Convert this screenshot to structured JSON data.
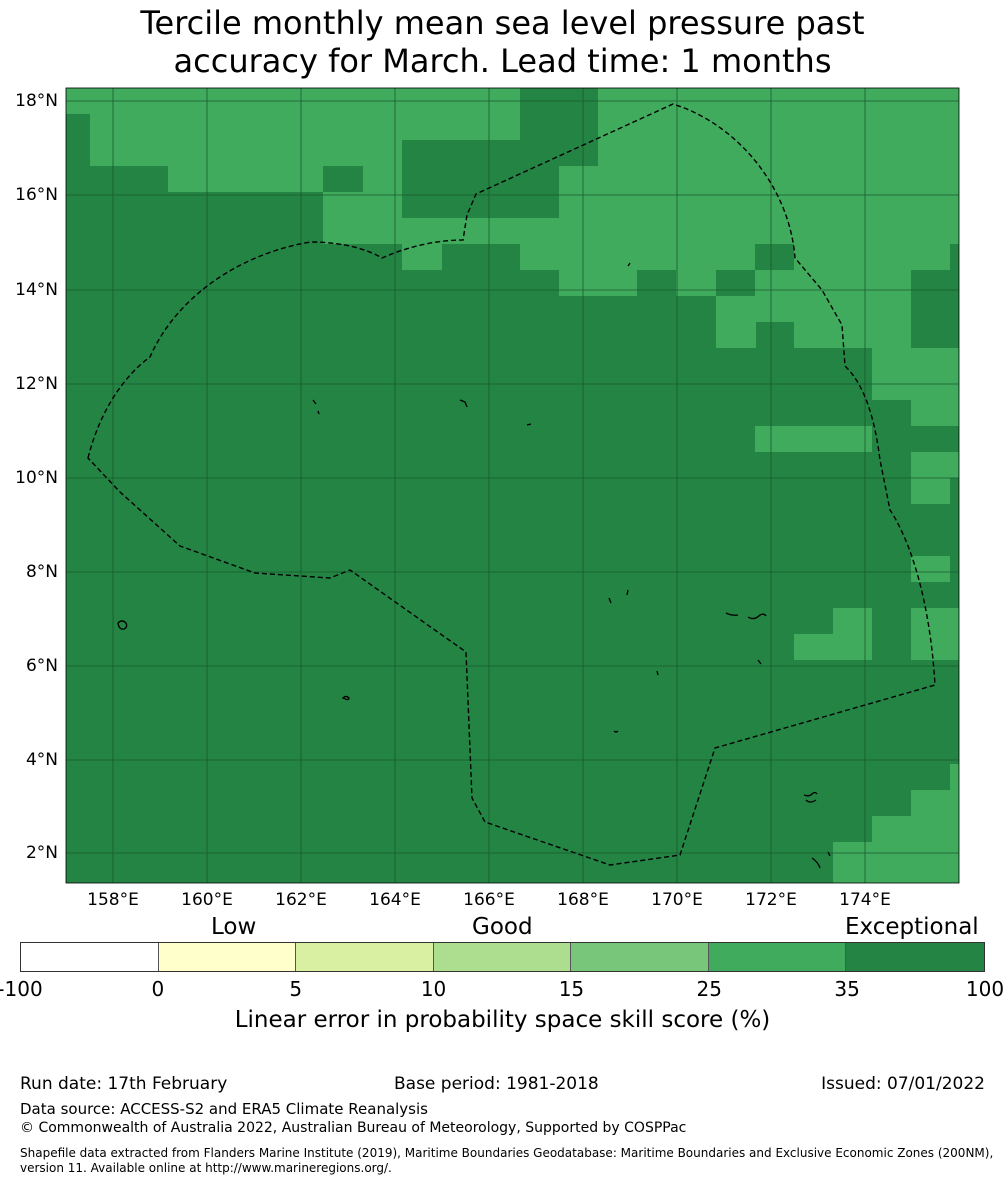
{
  "title_line1": "Tercile monthly mean sea level pressure past",
  "title_line2": "accuracy for March. Lead time: 1 months",
  "map": {
    "lat_labels": [
      "18°N",
      "16°N",
      "14°N",
      "12°N",
      "10°N",
      "8°N",
      "6°N",
      "4°N",
      "2°N"
    ],
    "lon_labels": [
      "158°E",
      "160°E",
      "162°E",
      "164°E",
      "166°E",
      "168°E",
      "170°E",
      "172°E",
      "174°E"
    ],
    "boundary": "dashed exclusive economic zone outline",
    "colors": {
      "exceptional_dark": "#238443",
      "exceptional_light": "#41ab5d"
    }
  },
  "colorbar": {
    "category_labels": [
      "Low",
      "Good",
      "Exceptional"
    ],
    "ticks": [
      "-100",
      "0",
      "5",
      "10",
      "15",
      "25",
      "35",
      "100"
    ],
    "colors": [
      "#ffffff",
      "#ffffcc",
      "#d9f0a3",
      "#addd8e",
      "#78c679",
      "#41ab5d",
      "#238443"
    ],
    "label": "Linear error in probability space skill score (%)"
  },
  "footer": {
    "run_date": "Run date: 17th February",
    "base_period": "Base period: 1981-2018",
    "issued": "Issued: 07/01/2022",
    "data_source": "Data source: ACCESS-S2 and ERA5 Climate Reanalysis",
    "copyright": "© Commonwealth of Australia 2022, Australian Bureau of Meteorology, Supported by COSPPac",
    "shapefile": "Shapefile data extracted from Flanders Marine Institute (2019), Maritime Boundaries Geodatabase: Maritime Boundaries and Exclusive Economic Zones (200NM), version 11. Available online at http://www.marineregions.org/."
  }
}
